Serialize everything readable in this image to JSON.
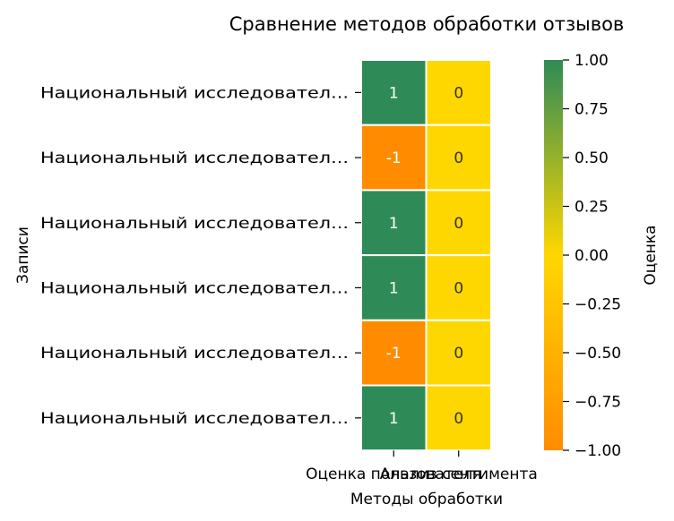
{
  "chart_data": {
    "type": "heatmap",
    "title": "Сравнение методов обработки отзывов",
    "xlabel": "Методы обработки",
    "ylabel": "Записи",
    "x_categories": [
      "Оценка пользователя",
      "Анализ сентимента"
    ],
    "y_categories": [
      "Национальный исследовател...",
      "Национальный исследовател...",
      "Национальный исследовател...",
      "Национальный исследовател...",
      "Национальный исследовател...",
      "Национальный исследовател..."
    ],
    "values": [
      [
        1,
        0
      ],
      [
        -1,
        0
      ],
      [
        1,
        0
      ],
      [
        1,
        0
      ],
      [
        -1,
        0
      ],
      [
        1,
        0
      ]
    ],
    "colorbar": {
      "label": "Оценка",
      "range": [
        -1,
        1
      ],
      "ticks": [
        "−1.00",
        "−0.75",
        "−0.50",
        "−0.25",
        "0.00",
        "0.25",
        "0.50",
        "0.75",
        "1.00"
      ],
      "colors": {
        "min": "#ff8c00",
        "mid": "#ffd700",
        "max": "#2e8b57"
      }
    }
  }
}
